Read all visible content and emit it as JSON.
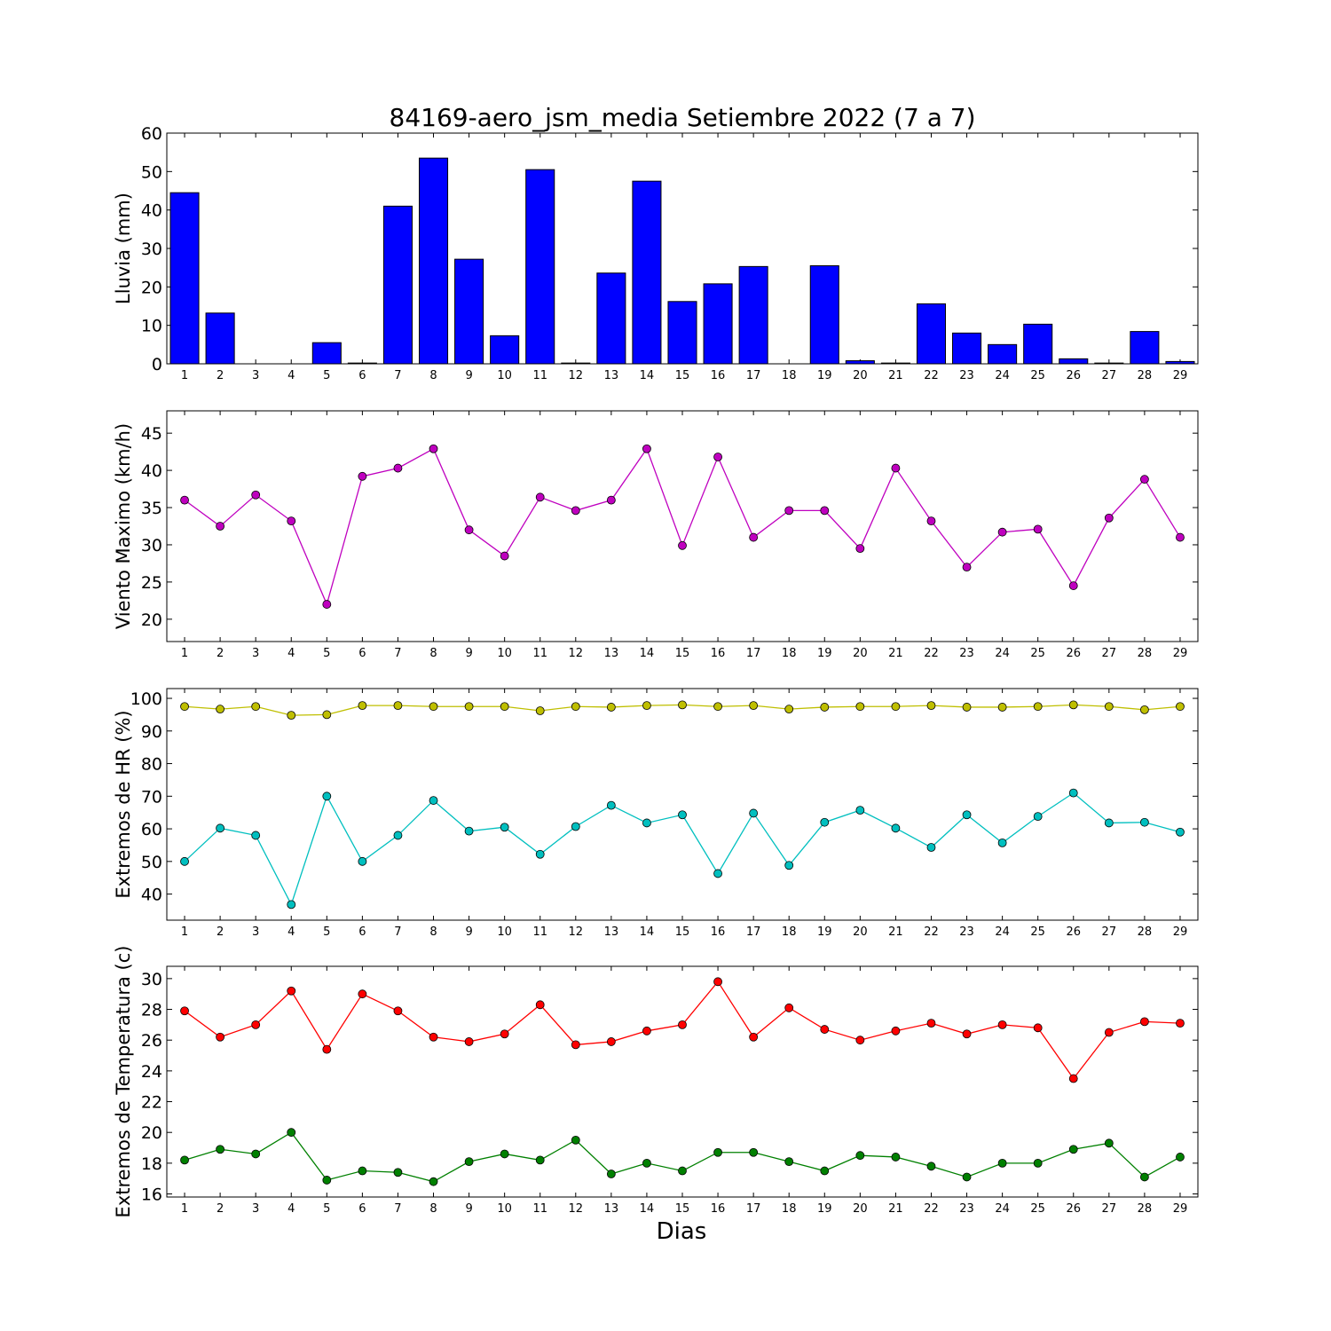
{
  "title": "84169-aero_jsm_media Setiembre 2022  (7 a 7)",
  "xlabel": "Dias",
  "days": [
    1,
    2,
    3,
    4,
    5,
    6,
    7,
    8,
    9,
    10,
    11,
    12,
    13,
    14,
    15,
    16,
    17,
    18,
    19,
    20,
    21,
    22,
    23,
    24,
    25,
    26,
    27,
    28,
    29
  ],
  "chart_data": [
    {
      "type": "bar",
      "ylabel": "Lluvia (mm)",
      "ylim": [
        0,
        60
      ],
      "yticks": [
        0,
        10,
        20,
        30,
        40,
        50,
        60
      ],
      "series": [
        {
          "color": "#0000ff",
          "values": [
            44.5,
            13.2,
            0,
            0,
            5.5,
            0.2,
            41.0,
            53.5,
            27.2,
            7.3,
            50.5,
            0.2,
            23.6,
            47.5,
            16.2,
            20.8,
            25.3,
            0,
            25.5,
            0.8,
            0.2,
            15.6,
            8.0,
            5.0,
            10.3,
            1.3,
            0.2,
            8.4,
            0.6
          ]
        }
      ]
    },
    {
      "type": "line",
      "ylabel": "Viento Maximo (km/h)",
      "ylim": [
        17,
        48
      ],
      "yticks": [
        20,
        25,
        30,
        35,
        40,
        45
      ],
      "series": [
        {
          "color": "#bf00bf",
          "values": [
            36.0,
            32.5,
            36.7,
            33.2,
            22.0,
            39.2,
            40.3,
            42.9,
            32.0,
            28.5,
            36.4,
            34.6,
            36.0,
            42.9,
            29.9,
            41.8,
            31.0,
            34.6,
            34.6,
            29.5,
            40.3,
            33.2,
            27.0,
            31.7,
            32.1,
            24.5,
            33.6,
            38.8,
            31.0
          ]
        }
      ]
    },
    {
      "type": "line",
      "ylabel": "Extremos de HR (%)",
      "ylim": [
        32,
        103
      ],
      "yticks": [
        40,
        50,
        60,
        70,
        80,
        90,
        100
      ],
      "series": [
        {
          "color": "#bfbf00",
          "values": [
            97.5,
            96.7,
            97.5,
            94.8,
            95.0,
            97.8,
            97.8,
            97.5,
            97.5,
            97.5,
            96.2,
            97.5,
            97.3,
            97.8,
            98.0,
            97.5,
            97.8,
            96.7,
            97.3,
            97.5,
            97.5,
            97.8,
            97.3,
            97.3,
            97.5,
            98.0,
            97.5,
            96.5,
            97.5
          ]
        },
        {
          "color": "#00bfbf",
          "values": [
            50.0,
            60.2,
            58.0,
            36.8,
            70.0,
            50.0,
            58.0,
            68.7,
            59.3,
            60.5,
            52.2,
            60.7,
            67.2,
            61.8,
            64.3,
            46.3,
            64.8,
            48.8,
            62.0,
            65.7,
            60.2,
            54.3,
            64.3,
            55.7,
            63.8,
            71.0,
            61.8,
            62.0,
            59.0
          ]
        }
      ]
    },
    {
      "type": "line",
      "ylabel": "Extremos de Temperatura (c)",
      "ylim": [
        15.8,
        30.8
      ],
      "yticks": [
        16,
        18,
        20,
        22,
        24,
        26,
        28,
        30
      ],
      "series": [
        {
          "color": "#ff0000",
          "values": [
            27.9,
            26.2,
            27.0,
            29.2,
            25.4,
            29.0,
            27.9,
            26.2,
            25.9,
            26.4,
            28.3,
            25.7,
            25.9,
            26.6,
            27.0,
            29.8,
            26.2,
            28.1,
            26.7,
            26.0,
            26.6,
            27.1,
            26.4,
            27.0,
            26.8,
            23.5,
            26.5,
            27.2,
            27.1
          ]
        },
        {
          "color": "#008000",
          "values": [
            18.2,
            18.9,
            18.6,
            20.0,
            16.9,
            17.5,
            17.4,
            16.8,
            18.1,
            18.6,
            18.2,
            19.5,
            17.3,
            18.0,
            17.5,
            18.7,
            18.7,
            18.1,
            17.5,
            18.5,
            18.4,
            17.8,
            17.1,
            18.0,
            18.0,
            18.9,
            19.3,
            17.1,
            18.4
          ]
        }
      ]
    }
  ]
}
